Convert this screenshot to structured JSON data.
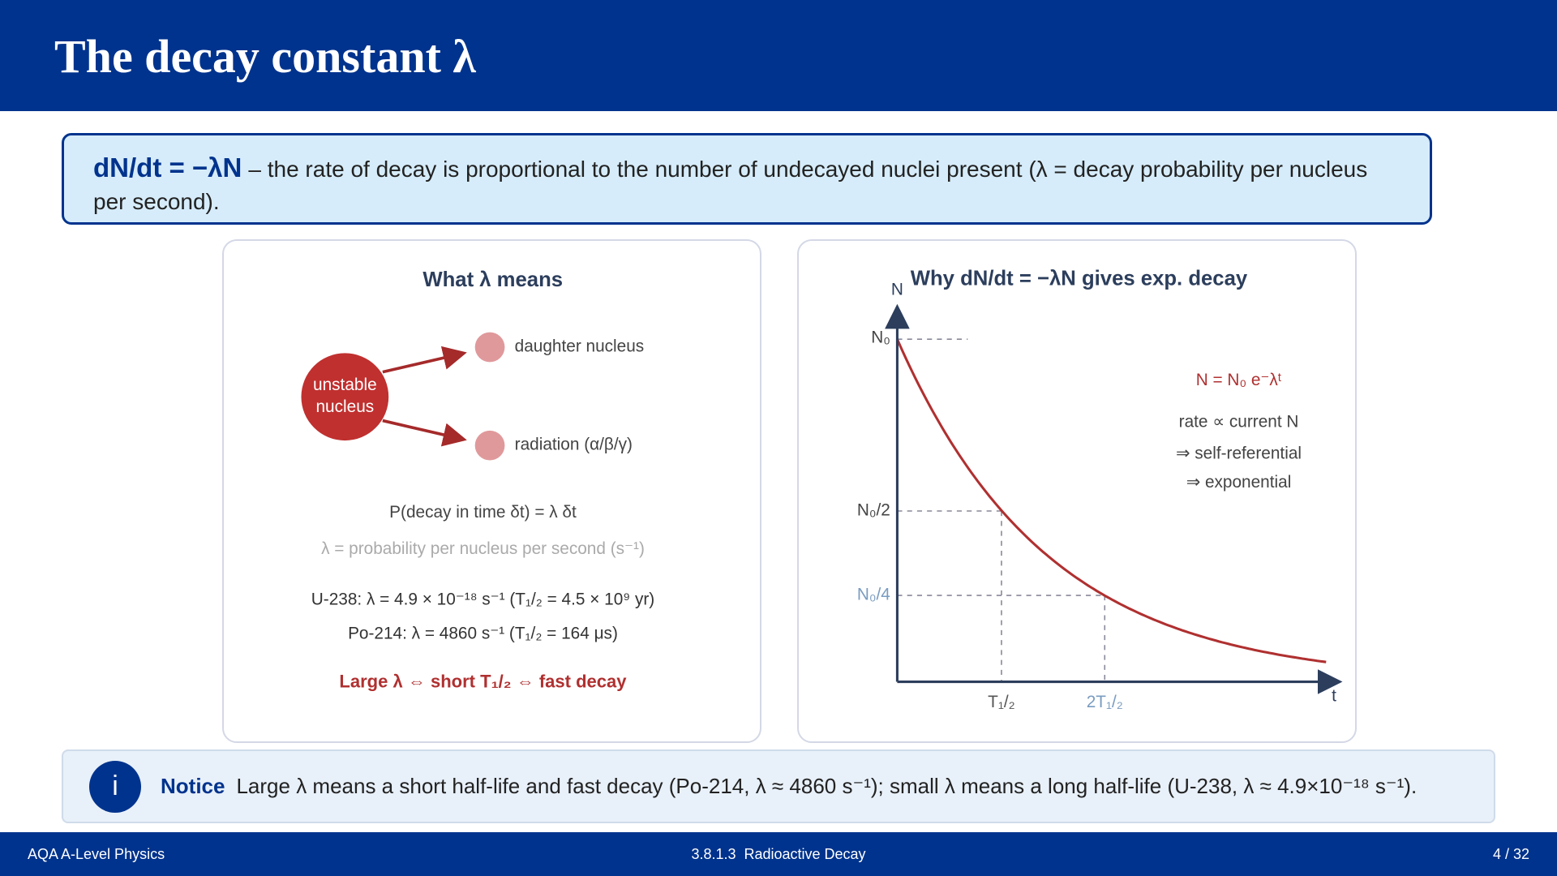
{
  "header": {
    "title": "The decay constant λ"
  },
  "definition": {
    "equation": "dN/dt = −λN",
    "text": "– the rate of decay is proportional to the number of undecayed nuclei present (λ = decay probability per nucleus per second)."
  },
  "left_panel": {
    "title": "What λ means",
    "nucleus_lines": [
      "unstable",
      "nucleus"
    ],
    "products": [
      "daughter nucleus",
      "radiation (α/β/γ)"
    ],
    "lines": [
      "P(decay in time δt) = λ δt",
      "λ = probability per nucleus per second (s⁻¹)",
      "U-238: λ = 4.9 × 10⁻¹⁸ s⁻¹ (T₁/₂ = 4.5 × 10⁹ yr)",
      "Po-214: λ = 4860 s⁻¹ (T₁/₂ = 164 μs)"
    ],
    "conclusion": "Large λ ⇔ short T₁/₂ ⇔ fast decay"
  },
  "right_panel": {
    "title": "Why dN/dt = −λN gives exp. decay",
    "y_axis_label": "N",
    "x_axis_label": "t",
    "y_levels": [
      "N₀",
      "N₀/2",
      "N₀/4"
    ],
    "x_marks": [
      "T₁/₂",
      "2T₁/₂"
    ],
    "notes": [
      "N = N₀ e⁻λᵗ",
      "rate ∝ current N",
      "⇒ self-referential",
      "⇒ exponential"
    ]
  },
  "notice": {
    "icon": "i",
    "label": "Notice",
    "text": "Large λ means a short half-life and fast decay (Po-214, λ ≈ 4860 s⁻¹); small λ means a long half-life (U-238, λ ≈ 4.9×10⁻¹⁸ s⁻¹)."
  },
  "footer": {
    "left": "AQA A-Level Physics",
    "center": "3.8.1.3  Radioactive Decay",
    "right": "4 / 32"
  }
}
